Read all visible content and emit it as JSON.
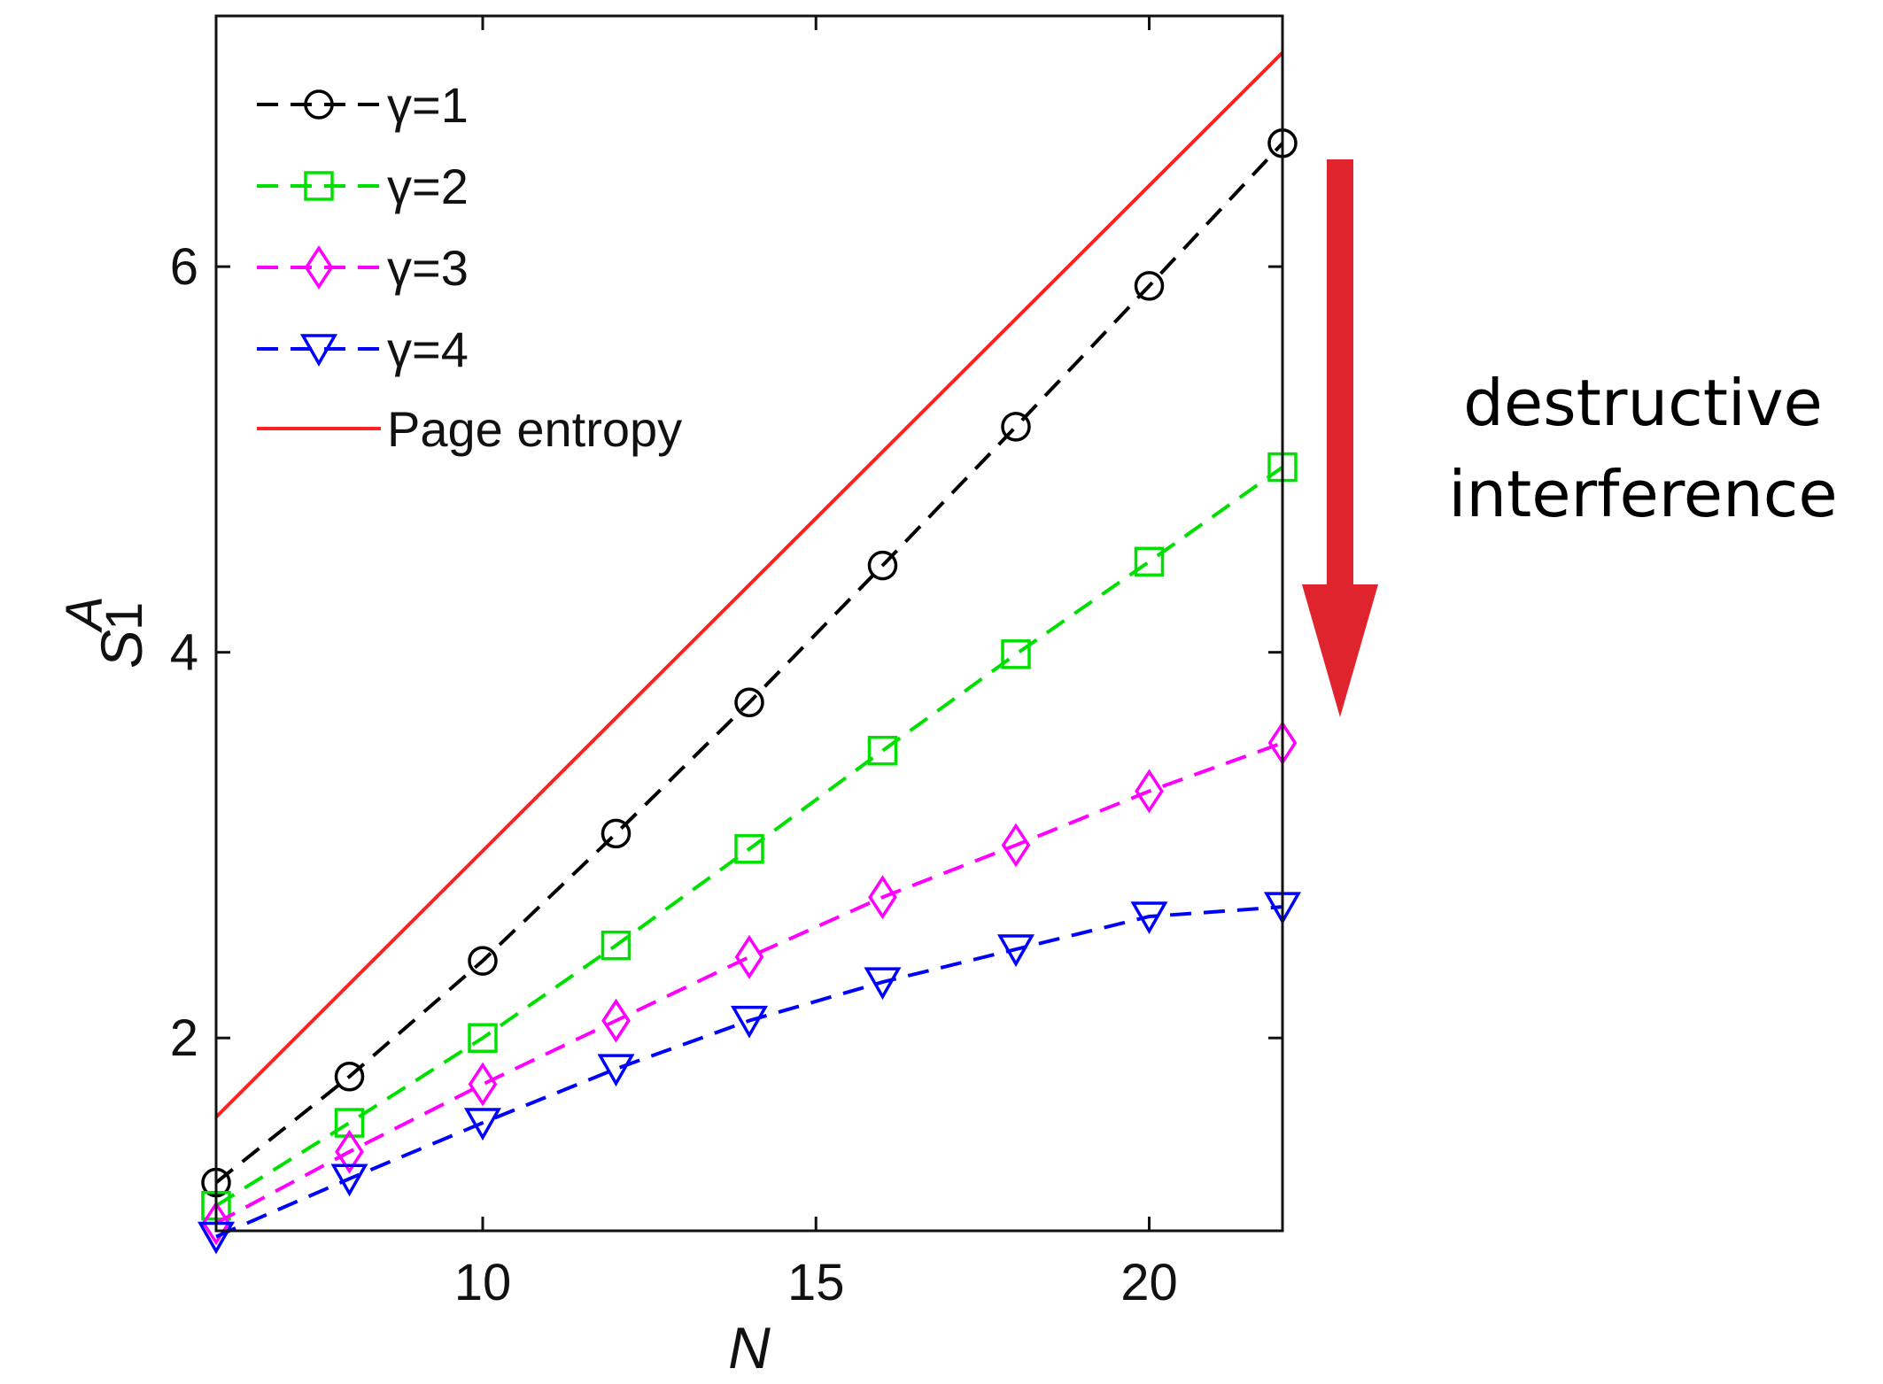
{
  "chart_data": {
    "type": "line",
    "xlabel": "N",
    "ylabel": "S",
    "ylabel_sup": "A",
    "ylabel_sub": "1",
    "xlim": [
      6,
      22
    ],
    "ylim": [
      1,
      7.3
    ],
    "xticks": [
      10,
      15,
      20
    ],
    "yticks": [
      2,
      4,
      6
    ],
    "grid": false,
    "legend_position": "top-left",
    "series": [
      {
        "name": "γ=1",
        "color": "#000000",
        "marker": "circle",
        "dash": true,
        "x": [
          6,
          8,
          10,
          12,
          14,
          16,
          18,
          20,
          22
        ],
        "y": [
          1.25,
          1.8,
          2.4,
          3.06,
          3.74,
          4.45,
          5.17,
          5.9,
          6.64
        ]
      },
      {
        "name": "γ=2",
        "color": "#00e000",
        "marker": "square",
        "dash": true,
        "x": [
          6,
          8,
          10,
          12,
          14,
          16,
          18,
          20,
          22
        ],
        "y": [
          1.13,
          1.56,
          2.0,
          2.48,
          2.98,
          3.49,
          3.99,
          4.47,
          4.96
        ]
      },
      {
        "name": "γ=3",
        "color": "#ff00ff",
        "marker": "diamond",
        "dash": true,
        "x": [
          6,
          8,
          10,
          12,
          14,
          16,
          18,
          20,
          22
        ],
        "y": [
          1.04,
          1.41,
          1.76,
          2.09,
          2.42,
          2.73,
          3.0,
          3.28,
          3.53
        ]
      },
      {
        "name": "γ=4",
        "color": "#0000ff",
        "marker": "triangle-down",
        "dash": true,
        "x": [
          6,
          8,
          10,
          12,
          14,
          16,
          18,
          20,
          22
        ],
        "y": [
          0.97,
          1.27,
          1.56,
          1.84,
          2.09,
          2.29,
          2.46,
          2.63,
          2.68
        ]
      },
      {
        "name": "Page entropy",
        "color": "#ff2020",
        "marker": "none",
        "dash": false,
        "x": [
          6,
          22
        ],
        "y": [
          1.59,
          7.11
        ]
      }
    ]
  },
  "annotation": {
    "lines": [
      "destructive",
      "interference"
    ],
    "arrow_color": "#e0242e"
  }
}
